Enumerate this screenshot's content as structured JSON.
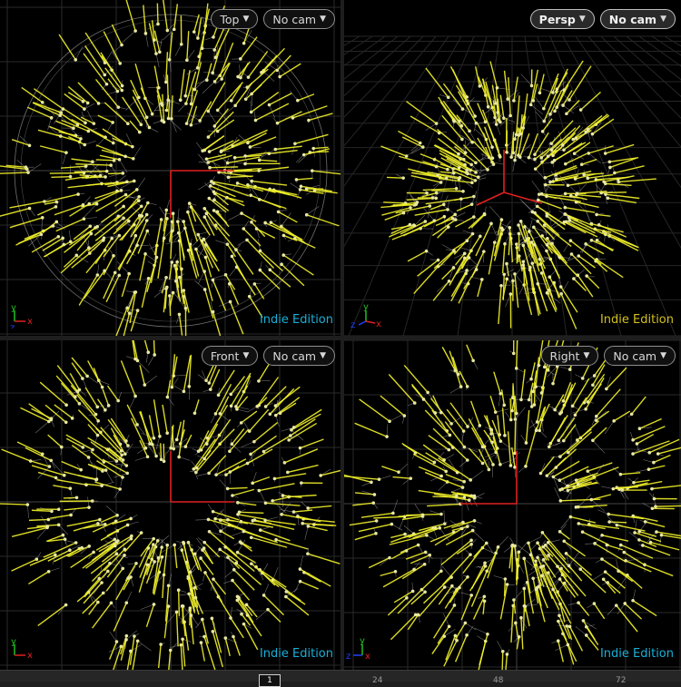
{
  "viewports": [
    {
      "id": "top",
      "view_label": "Top",
      "cam_label": "No cam",
      "edition": "Indie Edition",
      "edition_color": "#1ab0d8",
      "axes": [
        "y",
        "x",
        "z"
      ]
    },
    {
      "id": "persp",
      "view_label": "Persp",
      "cam_label": "No cam",
      "edition": "Indie Edition",
      "edition_color": "#d2c020",
      "axes": [
        "y",
        "z",
        "x"
      ]
    },
    {
      "id": "front",
      "view_label": "Front",
      "cam_label": "No cam",
      "edition": "Indie Edition",
      "edition_color": "#1ab0d8",
      "axes": [
        "y",
        "x"
      ]
    },
    {
      "id": "right",
      "view_label": "Right",
      "cam_label": "No cam",
      "edition": "Indie Edition",
      "edition_color": "#1ab0d8",
      "axes": [
        "y",
        "z",
        "x"
      ]
    }
  ],
  "timeline": {
    "current_frame": "1",
    "ticks": [
      "24",
      "48",
      "72"
    ]
  },
  "colors": {
    "hair": "#f2f22a",
    "line": "#c8c8c8",
    "point": "#e8e8a0",
    "axis_x": "#e02020",
    "axis_y": "#20c020",
    "axis_z": "#2040ff"
  }
}
